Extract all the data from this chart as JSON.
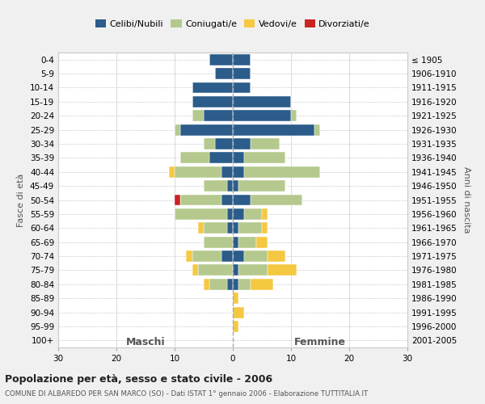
{
  "age_groups": [
    "0-4",
    "5-9",
    "10-14",
    "15-19",
    "20-24",
    "25-29",
    "30-34",
    "35-39",
    "40-44",
    "45-49",
    "50-54",
    "55-59",
    "60-64",
    "65-69",
    "70-74",
    "75-79",
    "80-84",
    "85-89",
    "90-94",
    "95-99",
    "100+"
  ],
  "birth_years": [
    "2001-2005",
    "1996-2000",
    "1991-1995",
    "1986-1990",
    "1981-1985",
    "1976-1980",
    "1971-1975",
    "1966-1970",
    "1961-1965",
    "1956-1960",
    "1951-1955",
    "1946-1950",
    "1941-1945",
    "1936-1940",
    "1931-1935",
    "1926-1930",
    "1921-1925",
    "1916-1920",
    "1911-1915",
    "1906-1910",
    "≤ 1905"
  ],
  "male": {
    "celibi": [
      4,
      3,
      7,
      7,
      5,
      9,
      3,
      4,
      2,
      1,
      2,
      1,
      1,
      0,
      2,
      0,
      1,
      0,
      0,
      0,
      0
    ],
    "coniugati": [
      0,
      0,
      0,
      0,
      2,
      1,
      2,
      5,
      8,
      4,
      7,
      9,
      4,
      5,
      5,
      6,
      3,
      0,
      0,
      0,
      0
    ],
    "vedovi": [
      0,
      0,
      0,
      0,
      0,
      0,
      0,
      0,
      1,
      0,
      0,
      0,
      1,
      0,
      1,
      1,
      1,
      0,
      0,
      0,
      0
    ],
    "divorziati": [
      0,
      0,
      0,
      0,
      0,
      0,
      0,
      0,
      0,
      0,
      1,
      0,
      0,
      0,
      0,
      0,
      0,
      0,
      0,
      0,
      0
    ]
  },
  "female": {
    "nubili": [
      3,
      3,
      3,
      10,
      10,
      14,
      3,
      2,
      2,
      1,
      3,
      2,
      1,
      1,
      2,
      1,
      1,
      0,
      0,
      0,
      0
    ],
    "coniugate": [
      0,
      0,
      0,
      0,
      1,
      1,
      5,
      7,
      13,
      8,
      9,
      3,
      4,
      3,
      4,
      5,
      2,
      0,
      0,
      0,
      0
    ],
    "vedove": [
      0,
      0,
      0,
      0,
      0,
      0,
      0,
      0,
      0,
      0,
      0,
      1,
      1,
      2,
      3,
      5,
      4,
      1,
      2,
      1,
      0
    ],
    "divorziate": [
      0,
      0,
      0,
      0,
      0,
      0,
      0,
      0,
      0,
      0,
      0,
      0,
      0,
      0,
      0,
      0,
      0,
      0,
      0,
      0,
      0
    ]
  },
  "colors": {
    "celibi": "#2b5c8a",
    "coniugati": "#b5c98e",
    "vedovi": "#f5c842",
    "divorziati": "#cc2222"
  },
  "xlim": 30,
  "title": "Popolazione per età, sesso e stato civile - 2006",
  "subtitle": "COMUNE DI ALBAREDO PER SAN MARCO (SO) - Dati ISTAT 1° gennaio 2006 - Elaborazione TUTTITALIA.IT",
  "ylabel_left": "Fasce di età",
  "ylabel_right": "Anni di nascita",
  "xlabel_male": "Maschi",
  "xlabel_female": "Femmine",
  "bg_color": "#f0f0f0",
  "plot_bg": "#ffffff",
  "grid_color": "#cccccc"
}
